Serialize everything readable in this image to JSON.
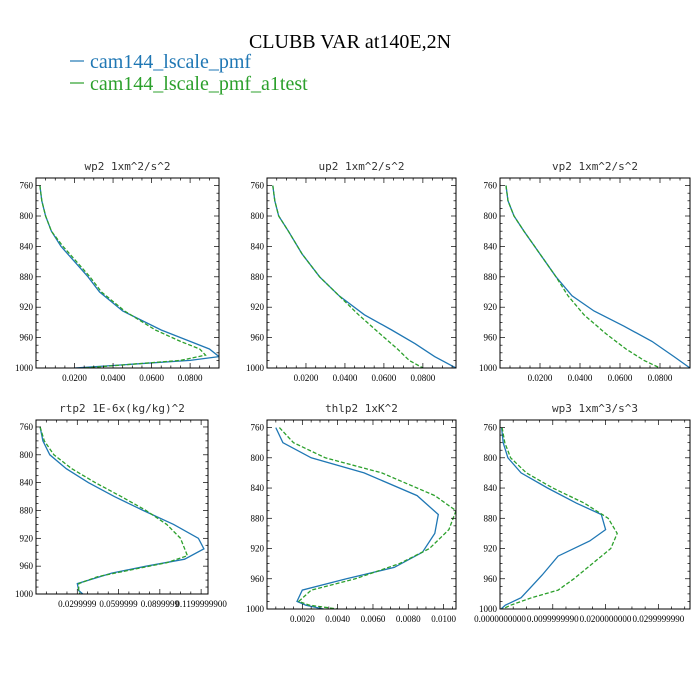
{
  "figure": {
    "title": "CLUBB VAR at140E,2N",
    "legend": [
      {
        "label": "cam144_lscale_pmf",
        "color": "#1f77b4",
        "dash": "solid"
      },
      {
        "label": "cam144_lscale_pmf_a1test",
        "color": "#2ca02c",
        "dash": "dashed"
      }
    ]
  },
  "chart_data": [
    {
      "type": "line",
      "title": "wp2  1xm^2/s^2",
      "xlim": [
        0.0,
        0.095
      ],
      "ylim": [
        1000,
        750
      ],
      "xticks": [
        0.02,
        0.04,
        0.06,
        0.08
      ],
      "xtick_labels": [
        "0.0200",
        "0.0400",
        "0.0600",
        "0.0800"
      ],
      "yticks": [
        760,
        800,
        840,
        880,
        920,
        960,
        1000
      ],
      "ytick_labels": [
        "760",
        "800",
        "840",
        "880",
        "920",
        "960",
        "1000"
      ],
      "series": [
        {
          "name": "cam144_lscale_pmf",
          "x": [
            0.002,
            0.003,
            0.005,
            0.008,
            0.013,
            0.02,
            0.027,
            0.033,
            0.045,
            0.065,
            0.08,
            0.09,
            0.095,
            0.08,
            0.05,
            0.02
          ],
          "y": [
            760,
            780,
            800,
            820,
            840,
            860,
            880,
            900,
            925,
            950,
            965,
            975,
            985,
            990,
            995,
            1000
          ]
        },
        {
          "name": "cam144_lscale_pmf_a1test",
          "x": [
            0.002,
            0.003,
            0.005,
            0.008,
            0.014,
            0.021,
            0.028,
            0.034,
            0.046,
            0.062,
            0.075,
            0.085,
            0.088,
            0.075,
            0.05,
            0.025
          ],
          "y": [
            760,
            780,
            800,
            820,
            840,
            860,
            880,
            900,
            925,
            950,
            965,
            975,
            983,
            990,
            995,
            1000
          ]
        }
      ]
    },
    {
      "type": "line",
      "title": "up2  1xm^2/s^2",
      "xlim": [
        0.0,
        0.097
      ],
      "ylim": [
        1000,
        750
      ],
      "xticks": [
        0.02,
        0.04,
        0.06,
        0.08
      ],
      "xtick_labels": [
        "0.0200",
        "0.0400",
        "0.0600",
        "0.0800"
      ],
      "yticks": [
        760,
        800,
        840,
        880,
        920,
        960,
        1000
      ],
      "ytick_labels": [
        "760",
        "800",
        "840",
        "880",
        "920",
        "960",
        "1000"
      ],
      "series": [
        {
          "name": "cam144_lscale_pmf",
          "x": [
            0.003,
            0.004,
            0.006,
            0.011,
            0.018,
            0.027,
            0.037,
            0.05,
            0.064,
            0.076,
            0.086,
            0.097
          ],
          "y": [
            760,
            780,
            800,
            820,
            850,
            880,
            905,
            930,
            950,
            968,
            985,
            1000
          ]
        },
        {
          "name": "cam144_lscale_pmf_a1test",
          "x": [
            0.003,
            0.004,
            0.006,
            0.011,
            0.018,
            0.027,
            0.037,
            0.047,
            0.058,
            0.067,
            0.073,
            0.08
          ],
          "y": [
            760,
            780,
            800,
            820,
            850,
            880,
            905,
            930,
            955,
            975,
            990,
            1000
          ]
        }
      ]
    },
    {
      "type": "line",
      "title": "vp2  1xm^2/s^2",
      "xlim": [
        0.0,
        0.095
      ],
      "ylim": [
        1000,
        750
      ],
      "xticks": [
        0.02,
        0.04,
        0.06,
        0.08
      ],
      "xtick_labels": [
        "0.0200",
        "0.0400",
        "0.0600",
        "0.0800"
      ],
      "yticks": [
        760,
        800,
        840,
        880,
        920,
        960,
        1000
      ],
      "ytick_labels": [
        "760",
        "800",
        "840",
        "880",
        "920",
        "960",
        "1000"
      ],
      "series": [
        {
          "name": "cam144_lscale_pmf",
          "x": [
            0.003,
            0.004,
            0.007,
            0.012,
            0.02,
            0.028,
            0.036,
            0.047,
            0.062,
            0.076,
            0.087,
            0.095
          ],
          "y": [
            760,
            780,
            800,
            820,
            850,
            880,
            905,
            925,
            945,
            965,
            985,
            1000
          ]
        },
        {
          "name": "cam144_lscale_pmf_a1test",
          "x": [
            0.003,
            0.004,
            0.007,
            0.012,
            0.02,
            0.028,
            0.034,
            0.042,
            0.053,
            0.063,
            0.072,
            0.08
          ],
          "y": [
            760,
            780,
            800,
            820,
            850,
            880,
            905,
            930,
            955,
            975,
            990,
            1000
          ]
        }
      ]
    },
    {
      "type": "line",
      "title": "rtp2  1E-6x(kg/kg)^2",
      "xlim": [
        0.0,
        0.125
      ],
      "ylim": [
        1000,
        750
      ],
      "xticks": [
        0.03,
        0.06,
        0.09,
        0.12
      ],
      "xtick_labels": [
        "0.0299999",
        "0.0599999",
        "0.0899999",
        "0.1199999900"
      ],
      "yticks": [
        760,
        800,
        840,
        880,
        920,
        960,
        1000
      ],
      "ytick_labels": [
        "760",
        "800",
        "840",
        "880",
        "920",
        "960",
        "1000"
      ],
      "series": [
        {
          "name": "cam144_lscale_pmf",
          "x": [
            0.003,
            0.005,
            0.01,
            0.022,
            0.038,
            0.057,
            0.078,
            0.1,
            0.118,
            0.122,
            0.108,
            0.08,
            0.055,
            0.03,
            0.031,
            0.034
          ],
          "y": [
            760,
            780,
            800,
            820,
            840,
            860,
            880,
            900,
            920,
            935,
            950,
            960,
            970,
            985,
            995,
            1000
          ]
        },
        {
          "name": "cam144_lscale_pmf_a1test",
          "x": [
            0.003,
            0.006,
            0.013,
            0.026,
            0.043,
            0.062,
            0.08,
            0.095,
            0.105,
            0.11,
            0.095,
            0.07,
            0.045,
            0.031,
            0.031,
            0.032
          ],
          "y": [
            760,
            780,
            800,
            820,
            840,
            860,
            880,
            900,
            920,
            945,
            955,
            965,
            975,
            985,
            995,
            1000
          ]
        }
      ]
    },
    {
      "type": "line",
      "title": "thlp2  1xK^2",
      "xlim": [
        0.0,
        0.0107
      ],
      "ylim": [
        1000,
        750
      ],
      "xticks": [
        0.002,
        0.004,
        0.006,
        0.008,
        0.01
      ],
      "xtick_labels": [
        "0.0020",
        "0.0040",
        "0.0060",
        "0.0080",
        "0.0100"
      ],
      "yticks": [
        760,
        800,
        840,
        880,
        920,
        960,
        1000
      ],
      "ytick_labels": [
        "760",
        "800",
        "840",
        "880",
        "920",
        "960",
        "1000"
      ],
      "series": [
        {
          "name": "cam144_lscale_pmf",
          "x": [
            0.0005,
            0.0009,
            0.0025,
            0.0055,
            0.0085,
            0.0097,
            0.0095,
            0.0088,
            0.0072,
            0.0045,
            0.002,
            0.0017,
            0.0022,
            0.0032
          ],
          "y": [
            760,
            780,
            800,
            820,
            850,
            875,
            900,
            925,
            945,
            960,
            975,
            990,
            995,
            1000
          ]
        },
        {
          "name": "cam144_lscale_pmf_a1test",
          "x": [
            0.0007,
            0.0015,
            0.0033,
            0.0065,
            0.0095,
            0.0107,
            0.0103,
            0.0092,
            0.0075,
            0.005,
            0.0025,
            0.0018,
            0.0024,
            0.004
          ],
          "y": [
            760,
            780,
            800,
            820,
            850,
            870,
            895,
            920,
            940,
            960,
            975,
            990,
            995,
            1000
          ]
        }
      ]
    },
    {
      "type": "line",
      "title": "wp3  1xm^3/s^3",
      "xlim": [
        0.0,
        0.036
      ],
      "ylim": [
        1000,
        750
      ],
      "xticks": [
        0.0,
        0.01,
        0.02,
        0.03
      ],
      "xtick_labels": [
        "0.0000000000",
        "0.0099999990",
        "0.0200000000",
        "0.0299999990"
      ],
      "yticks": [
        760,
        800,
        840,
        880,
        920,
        960,
        1000
      ],
      "ytick_labels": [
        "760",
        "800",
        "840",
        "880",
        "920",
        "960",
        "1000"
      ],
      "series": [
        {
          "name": "cam144_lscale_pmf",
          "x": [
            0.0003,
            0.0006,
            0.0015,
            0.004,
            0.009,
            0.0145,
            0.0192,
            0.02,
            0.017,
            0.011,
            0.008,
            0.006,
            0.004,
            0.001,
            0.0002
          ],
          "y": [
            760,
            780,
            800,
            820,
            840,
            860,
            875,
            895,
            910,
            930,
            955,
            970,
            985,
            995,
            1000
          ]
        },
        {
          "name": "cam144_lscale_pmf_a1test",
          "x": [
            0.0004,
            0.0009,
            0.002,
            0.005,
            0.01,
            0.016,
            0.0205,
            0.0222,
            0.021,
            0.0175,
            0.014,
            0.011,
            0.006,
            0.002,
            0.0005
          ],
          "y": [
            760,
            780,
            800,
            820,
            840,
            860,
            880,
            900,
            920,
            940,
            960,
            975,
            985,
            995,
            1000
          ]
        }
      ]
    }
  ]
}
